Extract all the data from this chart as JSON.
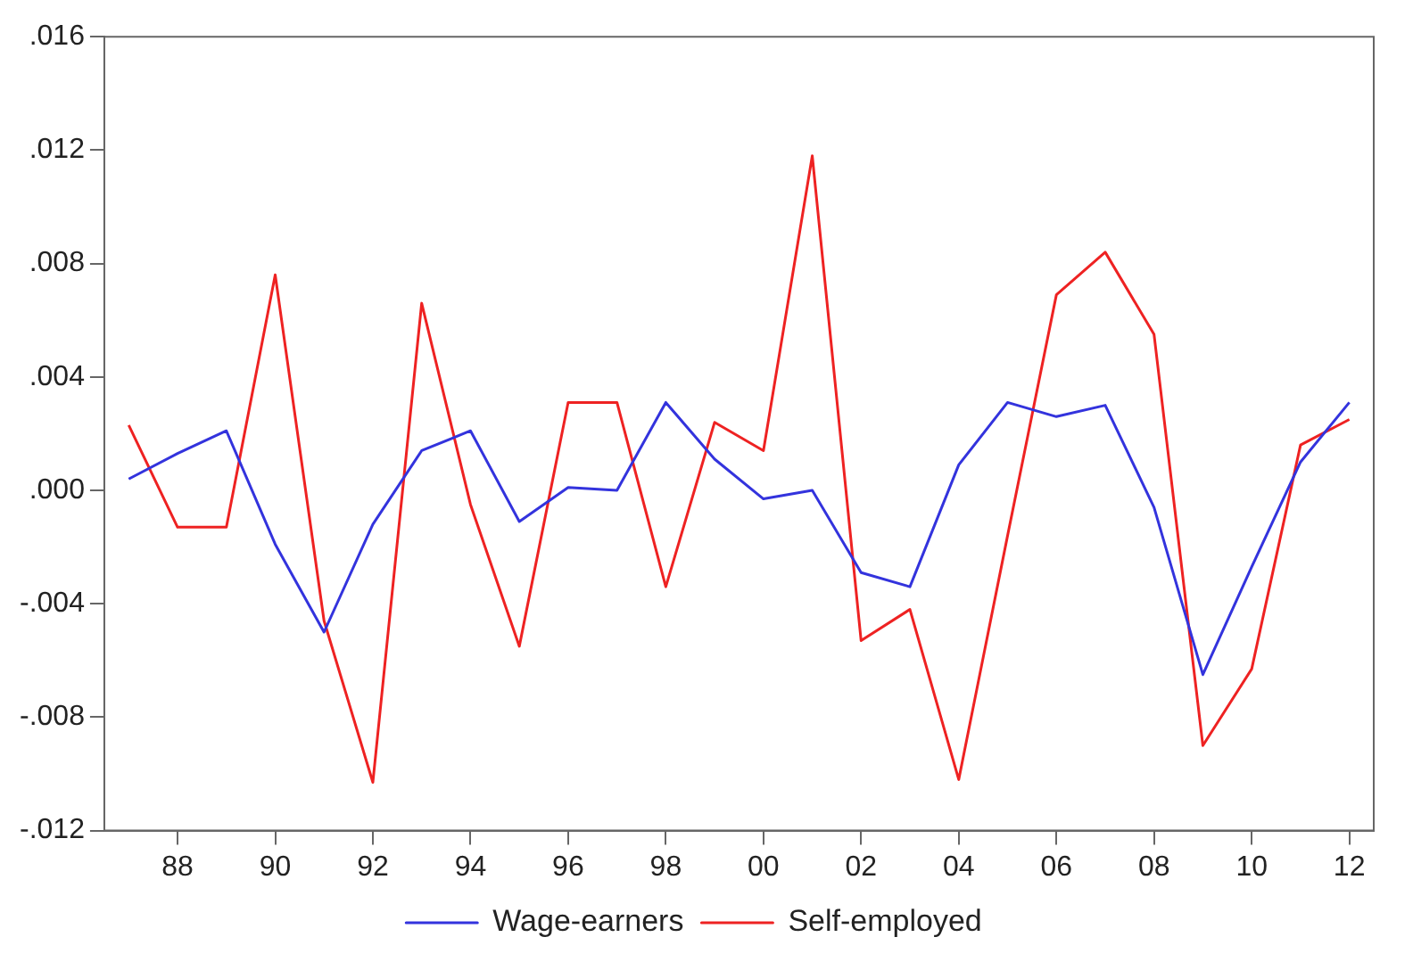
{
  "chart_data": {
    "type": "line",
    "x": [
      1987,
      1988,
      1989,
      1990,
      1991,
      1992,
      1993,
      1994,
      1995,
      1996,
      1997,
      1998,
      1999,
      2000,
      2001,
      2002,
      2003,
      2004,
      2005,
      2006,
      2007,
      2008,
      2009,
      2010,
      2011,
      2012
    ],
    "series": [
      {
        "name": "Wage-earners",
        "color": "#3333dd",
        "values": [
          0.0004,
          0.0013,
          0.0021,
          -0.0019,
          -0.005,
          -0.0012,
          0.0014,
          0.0021,
          -0.0011,
          0.0001,
          0.0,
          0.0031,
          0.0011,
          -0.0003,
          0.0,
          -0.0029,
          -0.0034,
          0.0009,
          0.0031,
          0.0026,
          0.003,
          -0.0006,
          -0.0065,
          -0.0027,
          0.001,
          0.0031
        ]
      },
      {
        "name": "Self-employed",
        "color": "#ee2222",
        "values": [
          0.0023,
          -0.0013,
          -0.0013,
          0.0076,
          -0.0046,
          -0.0103,
          0.0066,
          -0.0005,
          -0.0055,
          0.0031,
          0.0031,
          -0.0034,
          0.0024,
          0.0014,
          0.0118,
          -0.0053,
          -0.0042,
          -0.0102,
          -0.0016,
          0.0069,
          0.0084,
          0.0055,
          -0.009,
          -0.0063,
          0.0016,
          0.0025
        ]
      }
    ],
    "xlim": [
      1986.5,
      2012.5
    ],
    "xticks": [
      {
        "value": 1988,
        "label": "88"
      },
      {
        "value": 1990,
        "label": "90"
      },
      {
        "value": 1992,
        "label": "92"
      },
      {
        "value": 1994,
        "label": "94"
      },
      {
        "value": 1996,
        "label": "96"
      },
      {
        "value": 1998,
        "label": "98"
      },
      {
        "value": 2000,
        "label": "00"
      },
      {
        "value": 2002,
        "label": "02"
      },
      {
        "value": 2004,
        "label": "04"
      },
      {
        "value": 2006,
        "label": "06"
      },
      {
        "value": 2008,
        "label": "08"
      },
      {
        "value": 2010,
        "label": "10"
      },
      {
        "value": 2012,
        "label": "12"
      }
    ],
    "ylim": [
      -0.012,
      0.016
    ],
    "yticks": [
      {
        "value": -0.012,
        "label": "-.012"
      },
      {
        "value": -0.008,
        "label": "-.008"
      },
      {
        "value": -0.004,
        "label": "-.004"
      },
      {
        "value": 0,
        "label": ".000"
      },
      {
        "value": 0.004,
        "label": ".004"
      },
      {
        "value": 0.008,
        "label": ".008"
      },
      {
        "value": 0.012,
        "label": ".012"
      },
      {
        "value": 0.016,
        "label": ".016"
      }
    ],
    "grid": false,
    "legend": "bottom",
    "marker": "none",
    "line_style": "solid"
  }
}
